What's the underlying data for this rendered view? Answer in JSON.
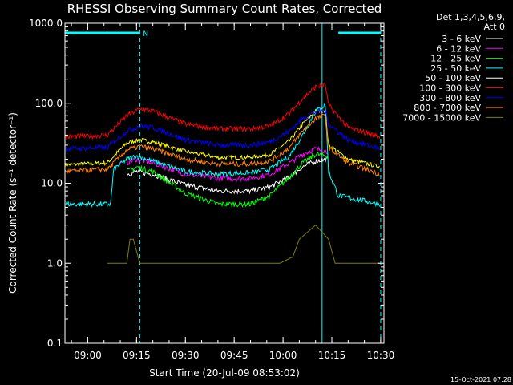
{
  "chart_data": {
    "type": "line",
    "title": "RHESSI Observing Summary Count Rates, Corrected",
    "xlabel": "Start Time (20-Jul-09 08:53:02)",
    "ylabel": "Corrected Count Rate (s⁻¹ detector⁻¹)",
    "y_scale": "log",
    "ylim": [
      0.1,
      1000
    ],
    "xlim": [
      "08:53",
      "10:31"
    ],
    "x_ticks": [
      "09:00",
      "09:15",
      "09:30",
      "09:45",
      "10:00",
      "10:15",
      "10:30"
    ],
    "y_ticks": [
      "0.1",
      "1.0",
      "10.0",
      "100.0",
      "1000.0"
    ],
    "legend_header": [
      "Det 1,3,4,5,6,9,",
      "Att 0"
    ],
    "legend_placement": "right",
    "timestamp": "15-Oct-2021 07:28",
    "annotation": "N",
    "night_bars": [
      [
        "08:53",
        "09:16"
      ],
      [
        "10:17",
        "10:30"
      ]
    ],
    "markers_dashed": [
      "09:16",
      "10:30"
    ],
    "marker_solid": "10:12",
    "series": [
      {
        "name": "3 - 6 keV",
        "color": "#ffffff",
        "x": [
          "08:53",
          "09:09",
          "09:12",
          "09:15",
          "09:20",
          "09:30",
          "09:40",
          "09:50",
          "09:56",
          "10:02",
          "10:06",
          "10:10",
          "10:14",
          "10:16"
        ],
        "y": [
          null,
          null,
          13,
          14,
          13,
          9.5,
          8,
          8,
          9,
          12,
          16,
          19,
          20,
          null
        ]
      },
      {
        "name": "6 - 12 keV",
        "color": "#ff00ff",
        "x": [
          "08:53",
          "09:09",
          "09:12",
          "09:15",
          "09:20",
          "09:30",
          "09:40",
          "09:50",
          "09:56",
          "10:02",
          "10:06",
          "10:10",
          "10:14",
          "10:16"
        ],
        "y": [
          null,
          null,
          18,
          20,
          18,
          13,
          11.5,
          11.5,
          13,
          18,
          23,
          27,
          25,
          null
        ]
      },
      {
        "name": "12 - 25 keV",
        "color": "#00ff00",
        "x": [
          "08:53",
          "09:09",
          "09:12",
          "09:15",
          "09:20",
          "09:30",
          "09:40",
          "09:50",
          "09:56",
          "10:02",
          "10:06",
          "10:10",
          "10:14",
          "10:16"
        ],
        "y": [
          null,
          null,
          14,
          16,
          14,
          7.5,
          5.5,
          5.5,
          7,
          12,
          18,
          23,
          22,
          null
        ]
      },
      {
        "name": "25 - 50 keV",
        "color": "#00ffff",
        "x": [
          "08:53",
          "09:07",
          "09:08",
          "09:12",
          "09:15",
          "09:20",
          "09:30",
          "09:40",
          "09:50",
          "09:56",
          "10:02",
          "10:06",
          "10:10",
          "10:13",
          "10:14",
          "10:17",
          "10:30"
        ],
        "y": [
          5.5,
          5.5,
          15,
          20,
          22,
          19,
          14,
          13,
          13.5,
          15,
          22,
          40,
          80,
          95,
          14,
          7,
          5.5
        ]
      },
      {
        "name": "50 - 100 keV",
        "color": "#ffffff",
        "x": [
          "08:53"
        ],
        "y": [
          null
        ]
      },
      {
        "name": "100 - 300 keV",
        "color": "#ff0000",
        "x": [
          "08:53",
          "09:06",
          "09:12",
          "09:16",
          "09:20",
          "09:30",
          "09:40",
          "09:50",
          "09:56",
          "10:02",
          "10:06",
          "10:10",
          "10:13",
          "10:14",
          "10:20",
          "10:30"
        ],
        "y": [
          38,
          40,
          70,
          85,
          80,
          55,
          48,
          48,
          52,
          75,
          115,
          160,
          170,
          95,
          50,
          38
        ]
      },
      {
        "name": "300 - 800 keV",
        "color": "#0000ff",
        "x": [
          "08:53",
          "09:06",
          "09:12",
          "09:16",
          "09:20",
          "09:30",
          "09:40",
          "09:50",
          "09:56",
          "10:02",
          "10:06",
          "10:10",
          "10:13",
          "10:14",
          "10:20",
          "10:30"
        ],
        "y": [
          27,
          28,
          45,
          52,
          50,
          35,
          30,
          30,
          33,
          45,
          65,
          78,
          80,
          55,
          35,
          27
        ]
      },
      {
        "name": "800 - 7000 keV",
        "color": "#ff8000",
        "x": [
          "08:53",
          "09:06",
          "09:12",
          "09:16",
          "09:20",
          "09:30",
          "09:40",
          "09:50",
          "09:56",
          "10:02",
          "10:06",
          "10:10",
          "10:13",
          "10:14",
          "10:20",
          "10:30"
        ],
        "y": [
          14,
          15,
          26,
          29,
          27,
          20,
          17.5,
          17.5,
          19,
          28,
          45,
          65,
          70,
          28,
          18,
          13
        ]
      },
      {
        "name": "7000 - 15000 keV",
        "color": "#808000",
        "x": [
          "08:53",
          "09:06",
          "09:12",
          "09:13",
          "09:14",
          "09:16",
          "09:17",
          "09:30",
          "09:50",
          "09:59",
          "10:03",
          "10:05",
          "10:10",
          "10:14",
          "10:16",
          "10:30"
        ],
        "y": [
          null,
          1.0,
          1.0,
          2.0,
          2.0,
          1.0,
          1.0,
          1.0,
          1.0,
          1.0,
          1.2,
          2.0,
          3.0,
          2.0,
          1.0,
          1.0
        ]
      }
    ],
    "overlay_series": {
      "color": "#ffff00",
      "x": [
        "08:53",
        "09:06",
        "09:12",
        "09:16",
        "09:20",
        "09:30",
        "09:40",
        "09:50",
        "09:56",
        "10:02",
        "10:06",
        "10:10",
        "10:13",
        "10:14",
        "10:20",
        "10:30"
      ],
      "y": [
        17,
        18,
        32,
        35,
        33,
        25,
        21,
        21,
        23,
        34,
        55,
        80,
        82,
        30,
        20,
        16
      ]
    }
  }
}
